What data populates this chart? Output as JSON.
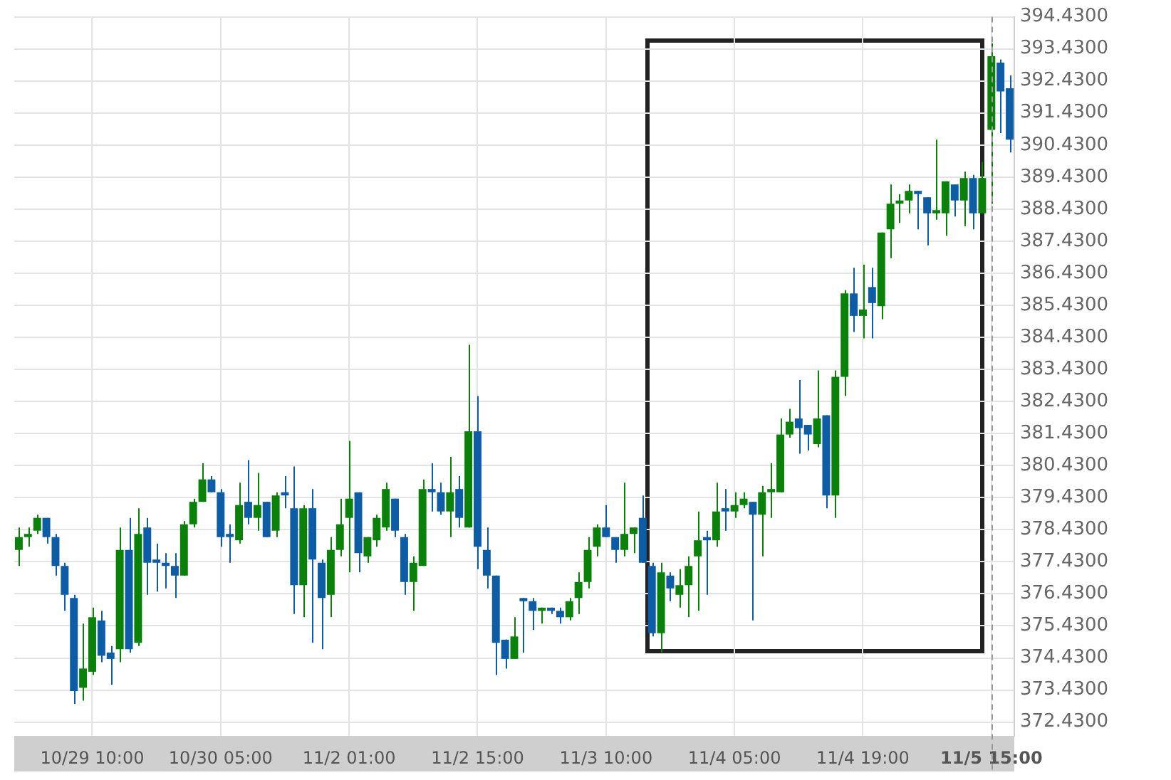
{
  "chart_data": {
    "type": "candlestick",
    "categories": [
      null,
      null,
      null,
      null,
      null,
      null,
      null,
      null,
      "10/29 10:00",
      null,
      null,
      null,
      null,
      null,
      null,
      null,
      null,
      null,
      null,
      null,
      null,
      null,
      "10/30 05:00",
      null,
      null,
      null,
      null,
      null,
      null,
      null,
      null,
      null,
      null,
      null,
      null,
      null,
      "11/2 01:00",
      null,
      null,
      null,
      null,
      null,
      null,
      null,
      null,
      null,
      null,
      null,
      null,
      null,
      "11/2 15:00",
      null,
      null,
      null,
      null,
      null,
      null,
      null,
      null,
      null,
      null,
      null,
      null,
      null,
      "11/3 10:00",
      null,
      null,
      null,
      null,
      null,
      null,
      null,
      null,
      null,
      null,
      null,
      null,
      null,
      "11/4 05:00",
      null,
      null,
      null,
      null,
      null,
      null,
      null,
      null,
      null,
      null,
      null,
      null,
      null,
      "11/4 19:00",
      null,
      null,
      null,
      null,
      null,
      null,
      null,
      null,
      null,
      null,
      null,
      null,
      null,
      "11/5 15:00",
      null,
      null
    ],
    "ohlc": [
      [
        377.8,
        378.5,
        377.3,
        378.2
      ],
      [
        378.2,
        378.5,
        377.9,
        378.3
      ],
      [
        378.4,
        378.9,
        378.3,
        378.8
      ],
      [
        378.8,
        378.8,
        378.0,
        378.2
      ],
      [
        378.2,
        378.3,
        377.0,
        377.3
      ],
      [
        377.3,
        377.4,
        375.9,
        376.4
      ],
      [
        376.3,
        376.4,
        373.0,
        373.4
      ],
      [
        373.5,
        375.5,
        373.1,
        374.1
      ],
      [
        374.0,
        376.0,
        373.9,
        375.7
      ],
      [
        375.6,
        375.9,
        374.3,
        374.5
      ],
      [
        374.6,
        374.8,
        373.6,
        374.4
      ],
      [
        374.7,
        378.5,
        374.3,
        377.8
      ],
      [
        377.8,
        378.8,
        374.6,
        374.7
      ],
      [
        374.9,
        379.1,
        374.8,
        378.3
      ],
      [
        378.5,
        378.8,
        376.4,
        377.4
      ],
      [
        377.5,
        378.0,
        376.5,
        377.4
      ],
      [
        377.4,
        377.7,
        376.6,
        377.3
      ],
      [
        377.3,
        377.7,
        376.3,
        377.0
      ],
      [
        377.0,
        378.7,
        377.0,
        378.6
      ],
      [
        378.6,
        379.4,
        378.5,
        379.3
      ],
      [
        379.3,
        380.5,
        379.3,
        380.0
      ],
      [
        380.0,
        380.1,
        379.6,
        379.6
      ],
      [
        379.6,
        379.7,
        377.9,
        378.2
      ],
      [
        378.3,
        378.6,
        377.4,
        378.2
      ],
      [
        378.1,
        379.9,
        378.0,
        379.2
      ],
      [
        379.3,
        380.6,
        378.6,
        378.8
      ],
      [
        378.8,
        380.2,
        378.4,
        379.2
      ],
      [
        379.3,
        379.3,
        378.2,
        378.2
      ],
      [
        378.4,
        379.6,
        378.2,
        379.5
      ],
      [
        379.6,
        380.1,
        379.1,
        379.5
      ],
      [
        379.1,
        380.4,
        375.8,
        376.7
      ],
      [
        376.7,
        379.2,
        375.7,
        379.1
      ],
      [
        379.1,
        379.7,
        374.9,
        377.5
      ],
      [
        377.4,
        377.5,
        374.7,
        376.3
      ],
      [
        376.4,
        378.2,
        375.7,
        377.8
      ],
      [
        377.8,
        379.4,
        377.6,
        378.6
      ],
      [
        378.8,
        381.2,
        377.1,
        379.4
      ],
      [
        379.6,
        379.6,
        377.1,
        377.7
      ],
      [
        377.6,
        378.2,
        377.4,
        378.2
      ],
      [
        378.1,
        378.9,
        377.9,
        378.8
      ],
      [
        378.5,
        379.9,
        378.4,
        379.7
      ],
      [
        379.4,
        379.4,
        378.2,
        378.4
      ],
      [
        378.2,
        378.3,
        376.4,
        376.8
      ],
      [
        376.8,
        377.6,
        375.9,
        377.4
      ],
      [
        377.3,
        380.0,
        377.3,
        379.7
      ],
      [
        379.7,
        380.5,
        379.0,
        379.6
      ],
      [
        379.6,
        379.9,
        378.9,
        379.0
      ],
      [
        379.0,
        380.7,
        378.2,
        379.6
      ],
      [
        379.7,
        380.1,
        378.5,
        378.8
      ],
      [
        378.5,
        384.2,
        378.5,
        381.5
      ],
      [
        381.5,
        382.6,
        377.2,
        377.9
      ],
      [
        377.8,
        378.5,
        376.6,
        377.0
      ],
      [
        377.0,
        377.0,
        373.9,
        374.9
      ],
      [
        375.0,
        375.0,
        374.1,
        374.4
      ],
      [
        374.4,
        375.7,
        374.4,
        375.1
      ],
      [
        376.3,
        376.3,
        374.6,
        376.2
      ],
      [
        376.2,
        376.3,
        375.3,
        375.9
      ],
      [
        375.9,
        376.0,
        375.5,
        376.0
      ],
      [
        376.0,
        376.0,
        375.8,
        375.9
      ],
      [
        375.9,
        376.0,
        375.5,
        375.7
      ],
      [
        375.7,
        376.3,
        375.6,
        376.2
      ],
      [
        376.3,
        377.1,
        375.8,
        376.8
      ],
      [
        376.8,
        378.2,
        376.6,
        377.8
      ],
      [
        377.9,
        378.6,
        377.6,
        378.5
      ],
      [
        378.5,
        379.2,
        378.2,
        378.2
      ],
      [
        378.2,
        378.2,
        377.4,
        377.8
      ],
      [
        377.8,
        379.9,
        377.6,
        378.3
      ],
      [
        378.3,
        378.5,
        377.7,
        378.5
      ],
      [
        378.8,
        379.5,
        377.4,
        377.4
      ],
      [
        377.3,
        377.4,
        375.1,
        375.2
      ],
      [
        375.2,
        377.4,
        374.6,
        377.1
      ],
      [
        377.0,
        377.1,
        376.2,
        376.6
      ],
      [
        376.4,
        377.2,
        376.0,
        376.7
      ],
      [
        376.7,
        377.6,
        375.7,
        377.3
      ],
      [
        377.6,
        379.0,
        375.9,
        378.1
      ],
      [
        378.2,
        378.4,
        376.4,
        378.1
      ],
      [
        378.1,
        379.9,
        377.9,
        379.0
      ],
      [
        379.1,
        379.7,
        378.4,
        379.0
      ],
      [
        379.0,
        379.6,
        378.8,
        379.2
      ],
      [
        379.2,
        379.6,
        379.1,
        379.4
      ],
      [
        379.3,
        379.3,
        375.6,
        378.9
      ],
      [
        378.9,
        379.8,
        377.6,
        379.6
      ],
      [
        379.6,
        380.5,
        378.8,
        379.7
      ],
      [
        379.6,
        381.9,
        379.6,
        381.4
      ],
      [
        381.4,
        382.2,
        381.3,
        381.8
      ],
      [
        381.9,
        383.1,
        380.8,
        381.6
      ],
      [
        381.7,
        381.7,
        380.9,
        381.4
      ],
      [
        381.1,
        383.4,
        381.0,
        381.9
      ],
      [
        382.0,
        382.0,
        379.1,
        379.5
      ],
      [
        379.5,
        383.4,
        378.8,
        383.2
      ],
      [
        383.2,
        385.9,
        382.6,
        385.8
      ],
      [
        385.8,
        386.6,
        384.6,
        385.1
      ],
      [
        385.1,
        386.7,
        384.4,
        385.3
      ],
      [
        386.0,
        386.6,
        384.4,
        385.5
      ],
      [
        385.4,
        387.7,
        385.0,
        387.7
      ],
      [
        387.8,
        389.2,
        386.9,
        388.6
      ],
      [
        388.6,
        388.9,
        388.0,
        388.7
      ],
      [
        388.7,
        389.2,
        388.3,
        389.0
      ],
      [
        389.0,
        389.0,
        387.8,
        388.9
      ],
      [
        388.8,
        388.8,
        387.3,
        388.3
      ],
      [
        388.3,
        390.6,
        388.1,
        388.4
      ],
      [
        388.3,
        389.3,
        387.6,
        389.3
      ],
      [
        389.2,
        389.2,
        388.2,
        388.7
      ],
      [
        388.7,
        389.6,
        387.9,
        389.4
      ],
      [
        389.4,
        389.5,
        387.8,
        388.3
      ],
      [
        388.3,
        389.9,
        388.3,
        389.4
      ],
      [
        390.9,
        393.6,
        388.6,
        393.2
      ],
      [
        393.0,
        393.1,
        390.8,
        392.1
      ],
      [
        392.2,
        392.6,
        390.2,
        390.6
      ]
    ],
    "colors": [
      "#0a820a",
      "#0a820a",
      "#0a820a",
      "#0d5ca6",
      "#0d5ca6",
      "#0d5ca6",
      "#0d5ca6",
      "#0a820a",
      "#0a820a",
      "#0d5ca6",
      "#0d5ca6",
      "#0a820a",
      "#0d5ca6",
      "#0a820a",
      "#0d5ca6",
      "#0d5ca6",
      "#0d5ca6",
      "#0d5ca6",
      "#0a820a",
      "#0a820a",
      "#0a820a",
      "#0d5ca6",
      "#0d5ca6",
      "#0d5ca6",
      "#0a820a",
      "#0d5ca6",
      "#0a820a",
      "#0d5ca6",
      "#0a820a",
      "#0d5ca6",
      "#0d5ca6",
      "#0a820a",
      "#0d5ca6",
      "#0d5ca6",
      "#0a820a",
      "#0a820a",
      "#0a820a",
      "#0d5ca6",
      "#0a820a",
      "#0a820a",
      "#0a820a",
      "#0d5ca6",
      "#0d5ca6",
      "#0a820a",
      "#0a820a",
      "#0d5ca6",
      "#0d5ca6",
      "#0a820a",
      "#0d5ca6",
      "#0a820a",
      "#0d5ca6",
      "#0d5ca6",
      "#0d5ca6",
      "#0d5ca6",
      "#0a820a",
      "#0d5ca6",
      "#0d5ca6",
      "#0a820a",
      "#0d5ca6",
      "#0d5ca6",
      "#0a820a",
      "#0a820a",
      "#0a820a",
      "#0a820a",
      "#0d5ca6",
      "#0d5ca6",
      "#0a820a",
      "#0a820a",
      "#0d5ca6",
      "#0d5ca6",
      "#0a820a",
      "#0d5ca6",
      "#0a820a",
      "#0a820a",
      "#0a820a",
      "#0d5ca6",
      "#0a820a",
      "#0d5ca6",
      "#0a820a",
      "#0a820a",
      "#0d5ca6",
      "#0a820a",
      "#0a820a",
      "#0a820a",
      "#0a820a",
      "#0d5ca6",
      "#0d5ca6",
      "#0a820a",
      "#0d5ca6",
      "#0a820a",
      "#0a820a",
      "#0d5ca6",
      "#0a820a",
      "#0d5ca6",
      "#0a820a",
      "#0a820a",
      "#0a820a",
      "#0a820a",
      "#0d5ca6",
      "#0d5ca6",
      "#0a820a",
      "#0a820a",
      "#0d5ca6",
      "#0a820a",
      "#0d5ca6",
      "#0a820a",
      "#0a820a",
      "#0d5ca6",
      "#0d5ca6"
    ],
    "ylim": [
      372.0,
      394.43
    ],
    "yticks": [
      {
        "value": 372.43,
        "label": "372.4300"
      },
      {
        "value": 373.43,
        "label": "373.4300"
      },
      {
        "value": 374.43,
        "label": "374.4300"
      },
      {
        "value": 375.43,
        "label": "375.4300"
      },
      {
        "value": 376.43,
        "label": "376.4300"
      },
      {
        "value": 377.43,
        "label": "377.4300"
      },
      {
        "value": 378.43,
        "label": "378.4300"
      },
      {
        "value": 379.43,
        "label": "379.4300"
      },
      {
        "value": 380.43,
        "label": "380.4300"
      },
      {
        "value": 381.43,
        "label": "381.4300"
      },
      {
        "value": 382.43,
        "label": "382.4300"
      },
      {
        "value": 383.43,
        "label": "383.4300"
      },
      {
        "value": 384.43,
        "label": "384.4300"
      },
      {
        "value": 385.43,
        "label": "385.4300"
      },
      {
        "value": 386.43,
        "label": "386.4300"
      },
      {
        "value": 387.43,
        "label": "387.4300"
      },
      {
        "value": 388.43,
        "label": "388.4300"
      },
      {
        "value": 389.43,
        "label": "389.4300"
      },
      {
        "value": 390.43,
        "label": "390.4300"
      },
      {
        "value": 391.43,
        "label": "391.4300"
      },
      {
        "value": 392.43,
        "label": "392.4300"
      },
      {
        "value": 393.43,
        "label": "393.4300"
      },
      {
        "value": 394.43,
        "label": "394.4300"
      }
    ],
    "ref_lines": [
      {
        "axis": "x",
        "value": "11/5 15:00",
        "color": "#999999",
        "line_style": "dashed"
      }
    ],
    "grid": true,
    "legend": false
  }
}
